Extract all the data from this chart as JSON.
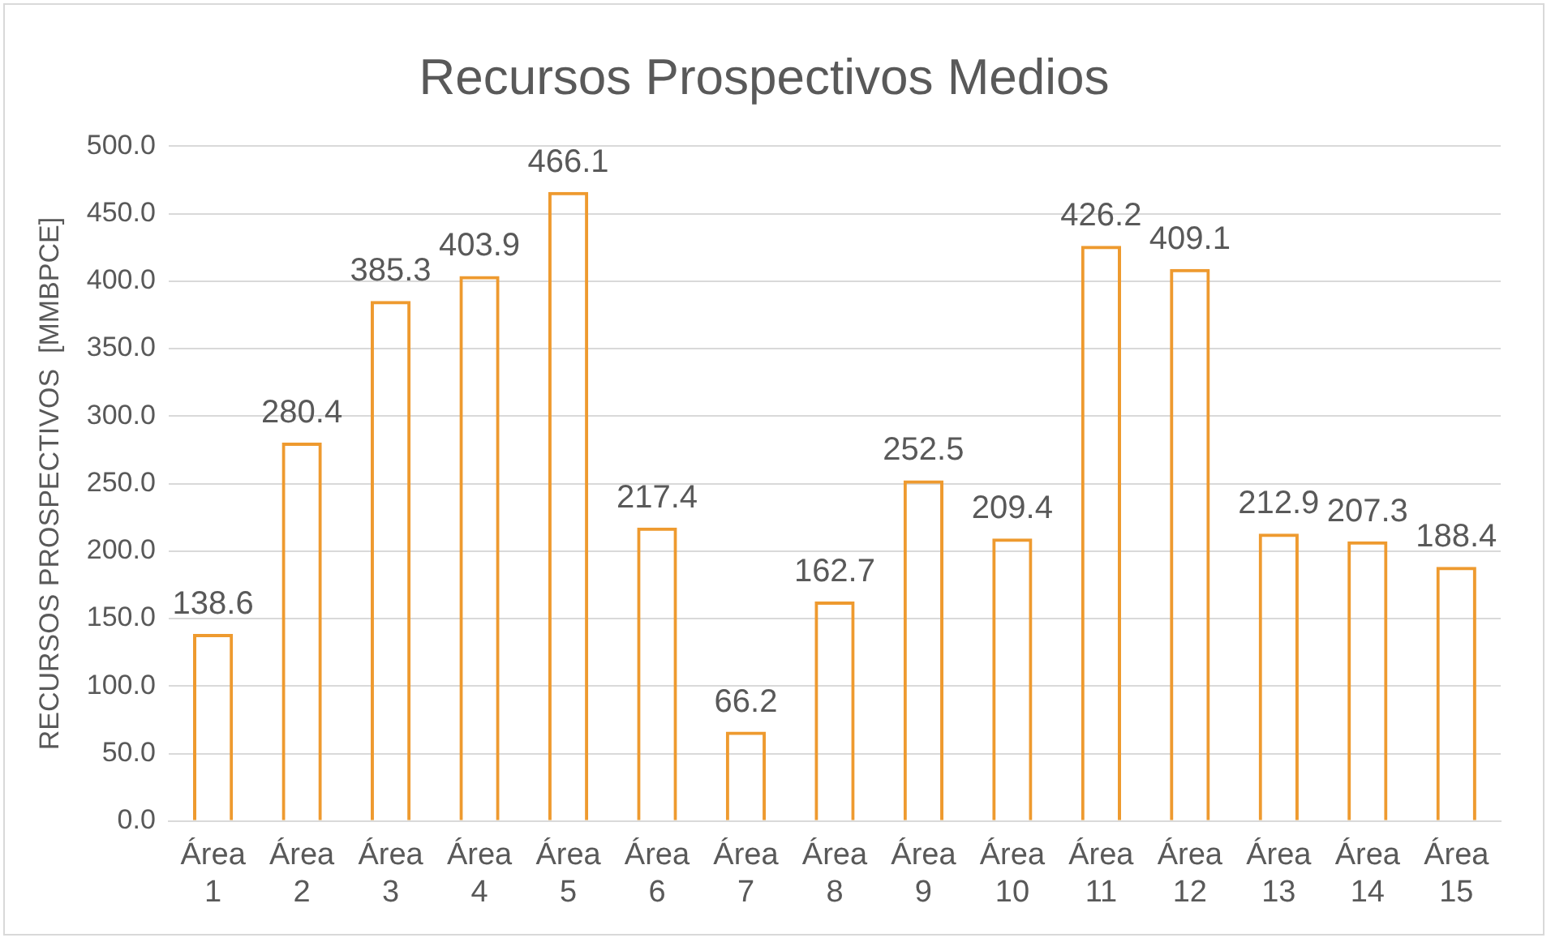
{
  "chart_data": {
    "type": "bar",
    "title": "Recursos Prospectivos Medios",
    "ylabel": "RECURSOS PROSPECTIVOS  [MMBPCE]",
    "categories": [
      "Área 1",
      "Área 2",
      "Área 3",
      "Área 4",
      "Área 5",
      "Área 6",
      "Área 7",
      "Área 8",
      "Área 9",
      "Área 10",
      "Área 11",
      "Área 12",
      "Área 13",
      "Área 14",
      "Área 15"
    ],
    "values": [
      138.6,
      280.4,
      385.3,
      403.9,
      466.1,
      217.4,
      66.2,
      162.7,
      252.5,
      209.4,
      426.2,
      409.1,
      212.9,
      207.3,
      188.4
    ],
    "color": "#ee9a2f",
    "ylim": [
      0,
      500
    ],
    "yticks": [
      {
        "value": 0,
        "label": "0.0"
      },
      {
        "value": 50,
        "label": "50.0"
      },
      {
        "value": 100,
        "label": "100.0"
      },
      {
        "value": 150,
        "label": "150.0"
      },
      {
        "value": 200,
        "label": "200.0"
      },
      {
        "value": 250,
        "label": "250.0"
      },
      {
        "value": 300,
        "label": "300.0"
      },
      {
        "value": 350,
        "label": "350.0"
      },
      {
        "value": 400,
        "label": "400.0"
      },
      {
        "value": 450,
        "label": "450.0"
      },
      {
        "value": 500,
        "label": "500.0"
      }
    ],
    "grid": "y",
    "data_labels": true
  }
}
